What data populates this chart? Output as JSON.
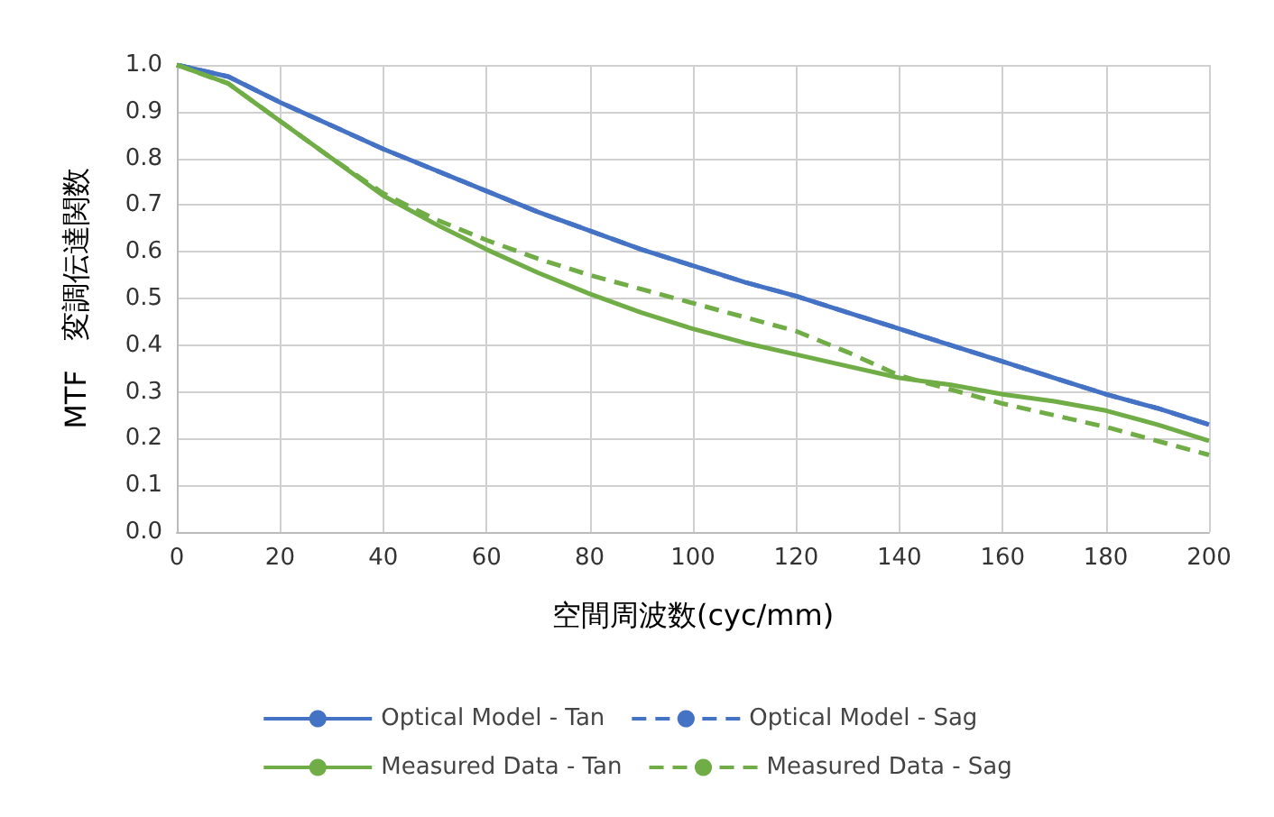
{
  "chart_data": {
    "type": "line",
    "xlabel": "空間周波数(cyc/mm)",
    "ylabel": "MTF　変調伝達関数",
    "x": [
      0,
      10,
      20,
      30,
      40,
      50,
      60,
      70,
      80,
      90,
      100,
      110,
      120,
      130,
      140,
      150,
      160,
      170,
      180,
      190,
      200
    ],
    "series": [
      {
        "name": "Optical Model - Tan",
        "color": "#4472c4",
        "line_style": "solid",
        "values": [
          1.0,
          0.975,
          0.92,
          0.87,
          0.82,
          0.775,
          0.73,
          0.685,
          0.645,
          0.605,
          0.57,
          0.535,
          0.505,
          0.47,
          0.435,
          0.4,
          0.365,
          0.33,
          0.295,
          0.265,
          0.23
        ]
      },
      {
        "name": "Optical Model - Sag",
        "color": "#4472c4",
        "line_style": "dashed",
        "values": [
          1.0,
          0.975,
          0.92,
          0.87,
          0.82,
          0.775,
          0.73,
          0.685,
          0.645,
          0.605,
          0.57,
          0.535,
          0.505,
          0.47,
          0.435,
          0.4,
          0.365,
          0.33,
          0.295,
          0.265,
          0.23
        ]
      },
      {
        "name": "Measured Data - Tan",
        "color": "#70ad47",
        "line_style": "solid",
        "values": [
          1.0,
          0.96,
          0.88,
          0.8,
          0.72,
          0.66,
          0.605,
          0.555,
          0.51,
          0.47,
          0.435,
          0.405,
          0.38,
          0.355,
          0.33,
          0.315,
          0.295,
          0.28,
          0.26,
          0.23,
          0.195
        ]
      },
      {
        "name": "Measured Data - Sag",
        "color": "#70ad47",
        "line_style": "dashed",
        "values": [
          1.0,
          0.96,
          0.88,
          0.8,
          0.725,
          0.67,
          0.625,
          0.585,
          0.55,
          0.52,
          0.49,
          0.46,
          0.43,
          0.385,
          0.335,
          0.305,
          0.275,
          0.25,
          0.225,
          0.195,
          0.165
        ]
      }
    ],
    "xlim": [
      0,
      200
    ],
    "xticks": [
      0,
      20,
      40,
      60,
      80,
      100,
      120,
      140,
      160,
      180,
      200
    ],
    "ylim": [
      0,
      1
    ],
    "yticks": [
      {
        "value": 0,
        "label": "0.0"
      },
      0.1,
      0.2,
      0.3,
      0.4,
      0.5,
      0.6,
      0.7,
      0.8,
      0.9,
      {
        "value": 1,
        "label": "1.0"
      }
    ],
    "grid": true,
    "legend": "bottom",
    "marker": "none"
  }
}
